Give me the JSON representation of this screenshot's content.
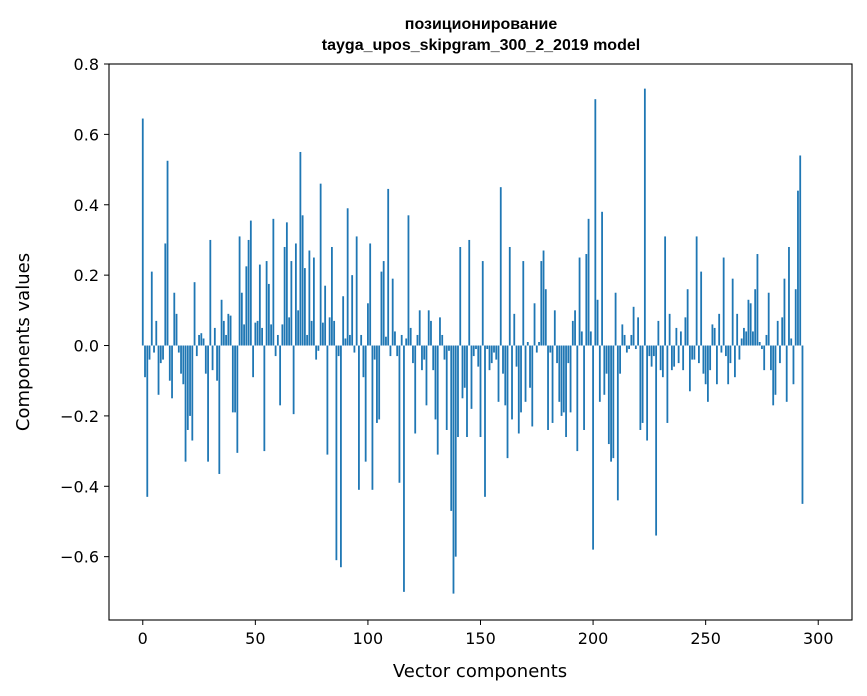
{
  "chart_data": {
    "type": "bar",
    "title": "позиционирование",
    "subtitle": "tayga_upos_skipgram_300_2_2019 model",
    "xlabel": "Vector components",
    "ylabel": "Components values",
    "xlim": [
      -15,
      315
    ],
    "ylim": [
      -0.78,
      0.8
    ],
    "xticks": [
      0,
      50,
      100,
      150,
      200,
      250,
      300
    ],
    "yticks": [
      -0.6,
      -0.4,
      -0.2,
      0.0,
      0.2,
      0.4,
      0.6,
      0.8
    ],
    "xtick_labels": [
      "0",
      "50",
      "100",
      "150",
      "200",
      "250",
      "300"
    ],
    "ytick_labels": [
      "−0.6",
      "−0.4",
      "−0.2",
      "0.0",
      "0.2",
      "0.4",
      "0.6",
      "0.8"
    ],
    "bar_color": "#1f77b4",
    "series": [
      {
        "name": "components",
        "values": [
          0.645,
          -0.09,
          -0.43,
          -0.04,
          0.21,
          -0.02,
          0.07,
          -0.14,
          -0.05,
          -0.04,
          0.29,
          0.525,
          -0.1,
          -0.15,
          0.15,
          0.09,
          -0.02,
          -0.08,
          -0.11,
          -0.33,
          -0.24,
          -0.2,
          -0.27,
          0.18,
          -0.03,
          0.03,
          0.035,
          0.02,
          -0.08,
          -0.33,
          0.3,
          -0.07,
          0.05,
          -0.1,
          -0.365,
          0.13,
          0.07,
          0.03,
          0.09,
          0.085,
          -0.19,
          -0.19,
          -0.305,
          0.31,
          0.15,
          0.06,
          0.225,
          0.3,
          0.355,
          -0.09,
          0.065,
          0.07,
          0.23,
          0.05,
          -0.3,
          0.24,
          0.175,
          0.06,
          0.36,
          -0.03,
          0.03,
          -0.17,
          0.06,
          0.28,
          0.35,
          0.08,
          0.24,
          -0.195,
          0.29,
          0.1,
          0.55,
          0.37,
          0.22,
          0.03,
          0.27,
          0.07,
          0.25,
          -0.04,
          -0.015,
          0.46,
          0.065,
          0.17,
          -0.31,
          0.08,
          0.28,
          0.07,
          -0.61,
          -0.03,
          -0.63,
          0.14,
          0.02,
          0.39,
          0.03,
          0.2,
          -0.02,
          0.31,
          -0.41,
          0.03,
          -0.09,
          -0.33,
          0.12,
          0.29,
          -0.41,
          -0.04,
          -0.22,
          -0.21,
          0.21,
          0.24,
          0.025,
          0.445,
          -0.03,
          0.19,
          0.04,
          -0.03,
          -0.39,
          0.03,
          -0.7,
          0.02,
          0.37,
          0.05,
          -0.05,
          -0.25,
          0.03,
          0.1,
          -0.07,
          -0.04,
          -0.17,
          0.1,
          0.07,
          -0.07,
          -0.21,
          -0.31,
          0.08,
          0.03,
          -0.04,
          -0.24,
          -0.015,
          -0.47,
          -0.705,
          -0.6,
          -0.26,
          0.28,
          -0.15,
          -0.12,
          -0.26,
          0.3,
          -0.18,
          -0.03,
          -0.01,
          -0.06,
          -0.26,
          0.24,
          -0.43,
          -0.01,
          -0.07,
          -0.05,
          -0.02,
          -0.04,
          -0.16,
          0.45,
          -0.08,
          -0.17,
          -0.32,
          0.28,
          -0.21,
          0.09,
          -0.06,
          -0.25,
          -0.19,
          0.24,
          -0.16,
          0.01,
          -0.12,
          -0.23,
          0.12,
          -0.02,
          0.01,
          0.24,
          0.27,
          0.16,
          -0.24,
          -0.02,
          -0.22,
          0.1,
          -0.05,
          -0.16,
          -0.2,
          -0.19,
          -0.26,
          -0.05,
          -0.19,
          0.07,
          0.1,
          -0.3,
          0.25,
          0.04,
          -0.24,
          0.26,
          0.36,
          0.04,
          -0.58,
          0.7,
          0.13,
          -0.16,
          0.38,
          -0.14,
          -0.08,
          -0.28,
          -0.33,
          -0.32,
          0.15,
          -0.44,
          -0.08,
          0.06,
          0.03,
          -0.02,
          -0.01,
          0.03,
          0.11,
          -0.01,
          0.08,
          -0.24,
          -0.22,
          0.73,
          -0.27,
          -0.03,
          -0.06,
          -0.03,
          -0.54,
          0.07,
          -0.07,
          -0.09,
          0.31,
          -0.22,
          0.09,
          -0.07,
          -0.06,
          0.05,
          -0.05,
          0.04,
          -0.07,
          0.08,
          0.16,
          -0.13,
          -0.04,
          -0.04,
          0.31,
          -0.05,
          0.21,
          -0.08,
          -0.11,
          -0.16,
          -0.07,
          0.06,
          0.05,
          -0.11,
          0.09,
          -0.02,
          0.25,
          -0.03,
          -0.11,
          -0.05,
          0.19,
          -0.09,
          0.09,
          -0.04,
          0.02,
          0.05,
          0.04,
          0.13,
          0.12,
          0.04,
          0.16,
          0.26,
          0.01,
          -0.01,
          -0.07,
          0.03,
          0.15,
          -0.07,
          -0.17,
          -0.14,
          0.07,
          -0.05,
          0.08,
          0.19,
          -0.16,
          0.28,
          0.02,
          -0.11,
          0.16,
          0.44,
          0.54,
          -0.45
        ]
      }
    ]
  }
}
